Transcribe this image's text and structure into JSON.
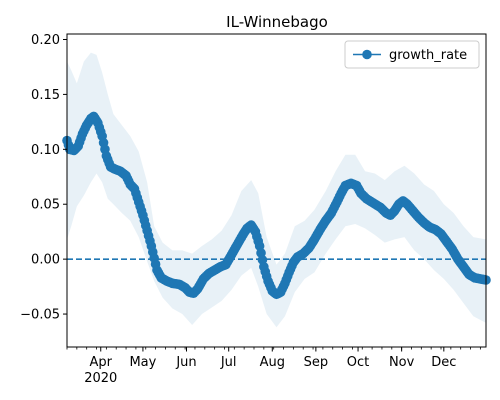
{
  "chart_data": {
    "type": "line",
    "title": "IL-Winnebago",
    "xlabel": "",
    "ylabel": "",
    "x_start": "2020-03-08",
    "x_end": "2020-12-31",
    "ylim": [
      -0.08,
      0.205
    ],
    "y_ticks": [
      -0.05,
      0.0,
      0.05,
      0.1,
      0.15,
      0.2
    ],
    "y_tick_labels": [
      "−0.05",
      "0.00",
      "0.05",
      "0.10",
      "0.15",
      "0.20"
    ],
    "x_ticks": [
      {
        "date": "2020-04-01",
        "label": "Apr",
        "sublabel": "2020"
      },
      {
        "date": "2020-05-01",
        "label": "May"
      },
      {
        "date": "2020-06-01",
        "label": "Jun"
      },
      {
        "date": "2020-07-01",
        "label": "Jul"
      },
      {
        "date": "2020-08-01",
        "label": "Aug"
      },
      {
        "date": "2020-09-01",
        "label": "Sep"
      },
      {
        "date": "2020-10-01",
        "label": "Oct"
      },
      {
        "date": "2020-11-01",
        "label": "Nov"
      },
      {
        "date": "2020-12-01",
        "label": "Dec"
      }
    ],
    "reference_line": {
      "y": 0.0,
      "style": "dashed"
    },
    "legend": {
      "position": "top-right"
    },
    "colors": {
      "line": "#1f77b4",
      "band": "#1f77b4"
    },
    "series": [
      {
        "name": "growth_rate",
        "style": "line-with-markers",
        "points": [
          [
            "2020-03-08",
            0.108
          ],
          [
            "2020-03-10",
            0.1
          ],
          [
            "2020-03-13",
            0.099
          ],
          [
            "2020-03-16",
            0.103
          ],
          [
            "2020-03-19",
            0.114
          ],
          [
            "2020-03-22",
            0.122
          ],
          [
            "2020-03-25",
            0.128
          ],
          [
            "2020-03-27",
            0.13
          ],
          [
            "2020-03-30",
            0.124
          ],
          [
            "2020-04-02",
            0.112
          ],
          [
            "2020-04-05",
            0.094
          ],
          [
            "2020-04-08",
            0.084
          ],
          [
            "2020-04-11",
            0.082
          ],
          [
            "2020-04-15",
            0.08
          ],
          [
            "2020-04-19",
            0.076
          ],
          [
            "2020-04-22",
            0.068
          ],
          [
            "2020-04-25",
            0.064
          ],
          [
            "2020-04-28",
            0.052
          ],
          [
            "2020-05-01",
            0.04
          ],
          [
            "2020-05-04",
            0.026
          ],
          [
            "2020-05-07",
            0.012
          ],
          [
            "2020-05-09",
            0.001
          ],
          [
            "2020-05-11",
            -0.01
          ],
          [
            "2020-05-14",
            -0.017
          ],
          [
            "2020-05-18",
            -0.02
          ],
          [
            "2020-05-22",
            -0.022
          ],
          [
            "2020-05-27",
            -0.023
          ],
          [
            "2020-05-31",
            -0.026
          ],
          [
            "2020-06-03",
            -0.03
          ],
          [
            "2020-06-06",
            -0.031
          ],
          [
            "2020-06-09",
            -0.027
          ],
          [
            "2020-06-13",
            -0.018
          ],
          [
            "2020-06-17",
            -0.013
          ],
          [
            "2020-06-21",
            -0.01
          ],
          [
            "2020-06-25",
            -0.007
          ],
          [
            "2020-06-29",
            -0.005
          ],
          [
            "2020-07-03",
            0.004
          ],
          [
            "2020-07-07",
            0.013
          ],
          [
            "2020-07-11",
            0.022
          ],
          [
            "2020-07-14",
            0.028
          ],
          [
            "2020-07-17",
            0.031
          ],
          [
            "2020-07-20",
            0.025
          ],
          [
            "2020-07-23",
            0.012
          ],
          [
            "2020-07-26",
            -0.007
          ],
          [
            "2020-07-29",
            -0.02
          ],
          [
            "2020-08-01",
            -0.029
          ],
          [
            "2020-08-04",
            -0.032
          ],
          [
            "2020-08-07",
            -0.03
          ],
          [
            "2020-08-10",
            -0.022
          ],
          [
            "2020-08-13",
            -0.012
          ],
          [
            "2020-08-16",
            -0.003
          ],
          [
            "2020-08-19",
            0.002
          ],
          [
            "2020-08-23",
            0.005
          ],
          [
            "2020-08-27",
            0.01
          ],
          [
            "2020-08-31",
            0.018
          ],
          [
            "2020-09-04",
            0.027
          ],
          [
            "2020-09-08",
            0.035
          ],
          [
            "2020-09-12",
            0.042
          ],
          [
            "2020-09-16",
            0.052
          ],
          [
            "2020-09-19",
            0.06
          ],
          [
            "2020-09-22",
            0.067
          ],
          [
            "2020-09-26",
            0.069
          ],
          [
            "2020-09-30",
            0.067
          ],
          [
            "2020-10-03",
            0.06
          ],
          [
            "2020-10-07",
            0.055
          ],
          [
            "2020-10-12",
            0.051
          ],
          [
            "2020-10-17",
            0.047
          ],
          [
            "2020-10-21",
            0.042
          ],
          [
            "2020-10-24",
            0.04
          ],
          [
            "2020-10-27",
            0.044
          ],
          [
            "2020-10-30",
            0.05
          ],
          [
            "2020-11-02",
            0.053
          ],
          [
            "2020-11-05",
            0.05
          ],
          [
            "2020-11-09",
            0.044
          ],
          [
            "2020-11-13",
            0.038
          ],
          [
            "2020-11-17",
            0.033
          ],
          [
            "2020-11-21",
            0.029
          ],
          [
            "2020-11-25",
            0.027
          ],
          [
            "2020-11-29",
            0.023
          ],
          [
            "2020-12-03",
            0.016
          ],
          [
            "2020-12-07",
            0.009
          ],
          [
            "2020-12-11",
            0.0
          ],
          [
            "2020-12-15",
            -0.007
          ],
          [
            "2020-12-19",
            -0.014
          ],
          [
            "2020-12-23",
            -0.017
          ],
          [
            "2020-12-27",
            -0.018
          ],
          [
            "2020-12-31",
            -0.019
          ]
        ]
      }
    ],
    "band": [
      [
        "2020-03-08",
        0.018,
        0.18
      ],
      [
        "2020-03-11",
        0.03,
        0.172
      ],
      [
        "2020-03-15",
        0.048,
        0.16
      ],
      [
        "2020-03-20",
        0.058,
        0.18
      ],
      [
        "2020-03-25",
        0.07,
        0.188
      ],
      [
        "2020-03-29",
        0.078,
        0.186
      ],
      [
        "2020-04-02",
        0.07,
        0.17
      ],
      [
        "2020-04-06",
        0.055,
        0.15
      ],
      [
        "2020-04-10",
        0.05,
        0.132
      ],
      [
        "2020-04-16",
        0.042,
        0.122
      ],
      [
        "2020-04-22",
        0.035,
        0.112
      ],
      [
        "2020-04-28",
        0.02,
        0.098
      ],
      [
        "2020-05-04",
        -0.002,
        0.07
      ],
      [
        "2020-05-09",
        -0.02,
        0.03
      ],
      [
        "2020-05-15",
        -0.035,
        0.015
      ],
      [
        "2020-05-22",
        -0.045,
        0.008
      ],
      [
        "2020-05-29",
        -0.05,
        0.008
      ],
      [
        "2020-06-05",
        -0.06,
        0.005
      ],
      [
        "2020-06-12",
        -0.05,
        0.012
      ],
      [
        "2020-06-19",
        -0.044,
        0.018
      ],
      [
        "2020-06-26",
        -0.038,
        0.026
      ],
      [
        "2020-07-03",
        -0.028,
        0.04
      ],
      [
        "2020-07-10",
        -0.015,
        0.062
      ],
      [
        "2020-07-17",
        -0.008,
        0.072
      ],
      [
        "2020-07-22",
        -0.025,
        0.06
      ],
      [
        "2020-07-28",
        -0.05,
        0.02
      ],
      [
        "2020-08-04",
        -0.062,
        -0.005
      ],
      [
        "2020-08-10",
        -0.052,
        0.005
      ],
      [
        "2020-08-17",
        -0.03,
        0.03
      ],
      [
        "2020-08-24",
        -0.018,
        0.035
      ],
      [
        "2020-08-31",
        -0.012,
        0.045
      ],
      [
        "2020-09-08",
        0.005,
        0.062
      ],
      [
        "2020-09-15",
        0.018,
        0.08
      ],
      [
        "2020-09-22",
        0.03,
        0.095
      ],
      [
        "2020-09-29",
        0.032,
        0.095
      ],
      [
        "2020-10-06",
        0.028,
        0.08
      ],
      [
        "2020-10-13",
        0.022,
        0.078
      ],
      [
        "2020-10-20",
        0.015,
        0.072
      ],
      [
        "2020-10-27",
        0.018,
        0.08
      ],
      [
        "2020-11-03",
        0.02,
        0.085
      ],
      [
        "2020-11-10",
        0.008,
        0.078
      ],
      [
        "2020-11-17",
        0.0,
        0.068
      ],
      [
        "2020-11-24",
        -0.01,
        0.062
      ],
      [
        "2020-12-01",
        -0.018,
        0.05
      ],
      [
        "2020-12-08",
        -0.028,
        0.042
      ],
      [
        "2020-12-15",
        -0.04,
        0.03
      ],
      [
        "2020-12-22",
        -0.052,
        0.02
      ],
      [
        "2020-12-31",
        -0.058,
        0.018
      ]
    ]
  }
}
